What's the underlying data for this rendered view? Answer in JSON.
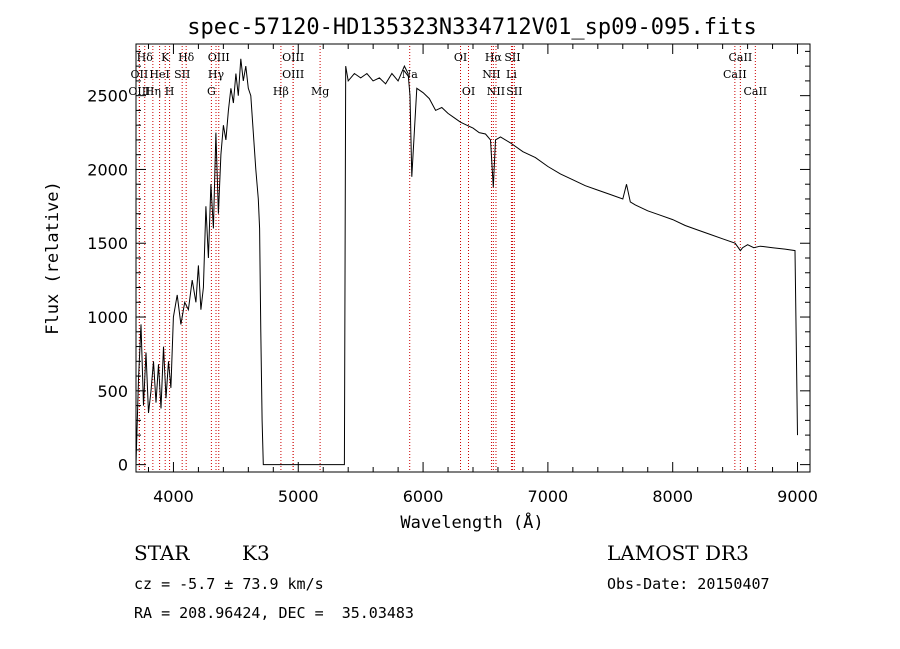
{
  "chart_data": {
    "type": "line",
    "title": "spec-57120-HD135323N334712V01_sp09-095.fits",
    "xlabel": "Wavelength (Å)",
    "ylabel": "Flux (relative)",
    "xlim": [
      3700,
      9100
    ],
    "ylim": [
      -50,
      2850
    ],
    "xticks": [
      4000,
      5000,
      6000,
      7000,
      8000,
      9000
    ],
    "yticks": [
      0,
      500,
      1000,
      1500,
      2000,
      2500
    ],
    "grid": false,
    "colors": {
      "line": "#000000",
      "marker": "#cc0000"
    },
    "lines": [
      {
        "label": "Hδ",
        "x": 3770,
        "row": 0
      },
      {
        "label": "OII",
        "x": 3727,
        "row": 1
      },
      {
        "label": "OIII",
        "x": 3727,
        "row": 2
      },
      {
        "label": "K",
        "x": 3934,
        "row": 0
      },
      {
        "label": "HeI",
        "x": 3889,
        "row": 1
      },
      {
        "label": "Hη",
        "x": 3835,
        "row": 2
      },
      {
        "label": "SII",
        "x": 4070,
        "row": 1
      },
      {
        "label": "H",
        "x": 3969,
        "row": 2
      },
      {
        "label": "Hδ",
        "x": 4102,
        "row": 0
      },
      {
        "label": "OIII",
        "x": 4363,
        "row": 0
      },
      {
        "label": "Hγ",
        "x": 4341,
        "row": 1
      },
      {
        "label": "G",
        "x": 4304,
        "row": 2
      },
      {
        "label": "OIII",
        "x": 4959,
        "row": 0
      },
      {
        "label": "OIII",
        "x": 4959,
        "row": 1
      },
      {
        "label": "Hβ",
        "x": 4861,
        "row": 2
      },
      {
        "label": "Mg",
        "x": 5175,
        "row": 2
      },
      {
        "label": "Na",
        "x": 5893,
        "row": 1
      },
      {
        "label": "OI",
        "x": 6300,
        "row": 0
      },
      {
        "label": "OI",
        "x": 6364,
        "row": 2
      },
      {
        "label": "Hα",
        "x": 6563,
        "row": 0
      },
      {
        "label": "SII",
        "x": 6716,
        "row": 0
      },
      {
        "label": "NII",
        "x": 6548,
        "row": 1
      },
      {
        "label": "Li",
        "x": 6708,
        "row": 1
      },
      {
        "label": "NII",
        "x": 6584,
        "row": 2
      },
      {
        "label": "SII",
        "x": 6731,
        "row": 2
      },
      {
        "label": "CaII",
        "x": 8542,
        "row": 0
      },
      {
        "label": "CaII",
        "x": 8498,
        "row": 1
      },
      {
        "label": "CaII",
        "x": 8662,
        "row": 2
      }
    ],
    "series": [
      {
        "x": [
          3700,
          3720,
          3740,
          3760,
          3780,
          3800,
          3820,
          3840,
          3860,
          3880,
          3900,
          3920,
          3940,
          3960,
          3980,
          4000,
          4030,
          4060,
          4090,
          4120,
          4150,
          4180,
          4200,
          4220,
          4240,
          4260,
          4280,
          4300,
          4320,
          4340,
          4360,
          4380,
          4400,
          4420,
          4440,
          4460,
          4480,
          4500,
          4520,
          4540,
          4560,
          4580,
          4600,
          4620,
          4640,
          4660,
          4680,
          4690,
          4700,
          4710,
          4720,
          5370,
          5380,
          5400,
          5450,
          5500,
          5550,
          5600,
          5650,
          5700,
          5750,
          5800,
          5850,
          5880,
          5895,
          5910,
          5950,
          6000,
          6050,
          6100,
          6150,
          6200,
          6250,
          6300,
          6350,
          6400,
          6450,
          6500,
          6540,
          6563,
          6580,
          6620,
          6700,
          6800,
          6900,
          7000,
          7100,
          7200,
          7300,
          7400,
          7500,
          7600,
          7630,
          7660,
          7700,
          7800,
          7900,
          8000,
          8100,
          8200,
          8300,
          8400,
          8500,
          8542,
          8560,
          8600,
          8650,
          8700,
          8800,
          8900,
          8980,
          9000
        ],
        "y": [
          0,
          580,
          950,
          400,
          760,
          350,
          500,
          700,
          420,
          680,
          380,
          800,
          450,
          700,
          520,
          1000,
          1150,
          950,
          1100,
          1050,
          1250,
          1100,
          1350,
          1050,
          1200,
          1750,
          1400,
          1900,
          1600,
          2250,
          1700,
          2100,
          2300,
          2200,
          2400,
          2550,
          2450,
          2650,
          2500,
          2750,
          2600,
          2700,
          2550,
          2500,
          2250,
          2000,
          1800,
          1600,
          900,
          300,
          0,
          0,
          2700,
          2600,
          2650,
          2620,
          2650,
          2600,
          2620,
          2580,
          2650,
          2600,
          2700,
          2650,
          2500,
          1950,
          2550,
          2520,
          2480,
          2400,
          2420,
          2380,
          2350,
          2320,
          2300,
          2280,
          2250,
          2240,
          2200,
          1880,
          2200,
          2220,
          2180,
          2120,
          2080,
          2020,
          1970,
          1930,
          1890,
          1860,
          1830,
          1800,
          1900,
          1780,
          1760,
          1720,
          1690,
          1660,
          1620,
          1590,
          1560,
          1530,
          1500,
          1450,
          1470,
          1490,
          1470,
          1480,
          1470,
          1460,
          1450,
          200
        ]
      }
    ]
  },
  "info": {
    "object_type": "STAR",
    "subclass": "K3",
    "survey": "LAMOST DR3",
    "redshift": "cz = -5.7 ± 73.9 km/s",
    "obs_date": "Obs-Date: 20150407",
    "coords": "RA = 208.96424, DEC =  35.03483"
  }
}
